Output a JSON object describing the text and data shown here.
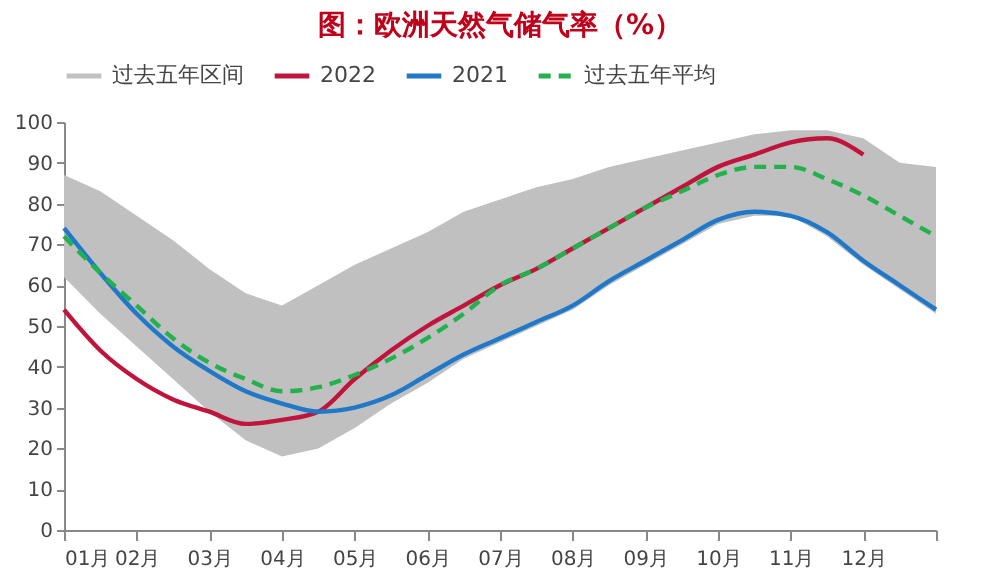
{
  "chart_data": {
    "type": "line",
    "title": "图：欧洲天然气储气率（%）",
    "x": [
      1,
      1.5,
      2,
      2.5,
      3,
      3.5,
      4,
      4.5,
      5,
      5.5,
      6,
      6.5,
      7,
      7.5,
      8,
      8.5,
      9,
      9.5,
      10,
      10.5,
      11,
      11.5,
      12,
      12.5,
      13
    ],
    "xlim": [
      1,
      13
    ],
    "xticks": [
      {
        "value": 1,
        "label": "01月"
      },
      {
        "value": 2,
        "label": "02月"
      },
      {
        "value": 3,
        "label": "03月"
      },
      {
        "value": 4,
        "label": "04月"
      },
      {
        "value": 5,
        "label": "05月"
      },
      {
        "value": 6,
        "label": "06月"
      },
      {
        "value": 7,
        "label": "07月"
      },
      {
        "value": 8,
        "label": "08月"
      },
      {
        "value": 9,
        "label": "09月"
      },
      {
        "value": 10,
        "label": "10月"
      },
      {
        "value": 11,
        "label": "11月"
      },
      {
        "value": 12,
        "label": "12月"
      },
      {
        "value": 13,
        "label": null
      }
    ],
    "ylim": [
      0,
      100
    ],
    "yticks": [
      0,
      10,
      20,
      30,
      40,
      50,
      60,
      70,
      80,
      90,
      100
    ],
    "grid": false,
    "legend": "top",
    "series": [
      {
        "name": "过去五年区间",
        "color": "#c0c0c0",
        "values": [
          null,
          null,
          null,
          null,
          null,
          null,
          null,
          null,
          null,
          null,
          null,
          null,
          null,
          null,
          null,
          null,
          null,
          null,
          null,
          null,
          null,
          null,
          null,
          null,
          null
        ],
        "lower": [
          62,
          53,
          45,
          37,
          29,
          22,
          18,
          20,
          25,
          31,
          36,
          42,
          46,
          50,
          54,
          60,
          65,
          70,
          75,
          77,
          77,
          72,
          65,
          59,
          53
        ],
        "upper": [
          87,
          83,
          77,
          71,
          64,
          58,
          55,
          60,
          65,
          69,
          73,
          78,
          81,
          84,
          86,
          89,
          91,
          93,
          95,
          97,
          98,
          98,
          96,
          90,
          89
        ]
      },
      {
        "name": "2022",
        "color": "#c0143c",
        "line_style": "solid",
        "values": [
          54,
          44,
          37,
          32,
          29,
          26,
          27,
          29,
          37,
          44,
          50,
          55,
          60,
          64,
          69,
          74,
          79,
          84,
          89,
          92,
          95,
          96,
          92,
          null,
          null
        ]
      },
      {
        "name": "2021",
        "color": "#1f78c8",
        "line_style": "solid",
        "values": [
          74,
          63,
          53,
          45,
          39,
          34,
          31,
          29,
          30,
          33,
          38,
          43,
          47,
          51,
          55,
          61,
          66,
          71,
          76,
          78,
          77,
          73,
          66,
          60,
          54
        ]
      },
      {
        "name": "过去五年平均",
        "color": "#22b14c",
        "line_style": "dashed",
        "values": [
          72,
          63,
          55,
          47,
          41,
          37,
          34,
          35,
          38,
          42,
          47,
          53,
          60,
          64,
          69,
          74,
          79,
          83,
          87,
          89,
          89,
          86,
          82,
          77,
          72
        ]
      }
    ]
  }
}
